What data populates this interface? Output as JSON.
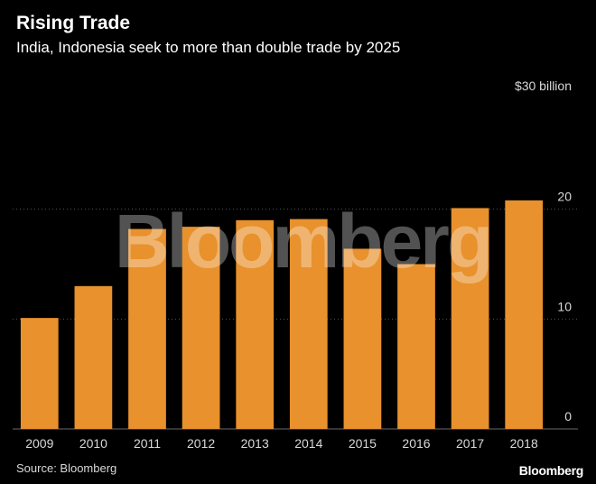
{
  "header": {
    "title": "Rising Trade",
    "subtitle": "India, Indonesia seek to more than double trade by 2025"
  },
  "footer": {
    "source": "Source: Bloomberg",
    "logo": "Bloomberg"
  },
  "watermark": "Bloomberg",
  "colors": {
    "bar": "#E8912D",
    "grid": "#555555",
    "background": "#000000"
  },
  "chart_data": {
    "type": "bar",
    "title": "Rising Trade",
    "subtitle": "India, Indonesia seek to more than double trade by 2025",
    "unit_label": "$30 billion",
    "categories": [
      "2009",
      "2010",
      "2011",
      "2012",
      "2013",
      "2014",
      "2015",
      "2016",
      "2017",
      "2018"
    ],
    "values": [
      10.1,
      13.0,
      18.2,
      18.4,
      19.0,
      19.1,
      16.4,
      15.0,
      20.1,
      20.8
    ],
    "ylim": [
      0,
      30
    ],
    "yticks": [
      0,
      10,
      20
    ],
    "ytick_labels": [
      "0",
      "10",
      "20"
    ],
    "grid": true,
    "xlabel": "",
    "ylabel": ""
  }
}
